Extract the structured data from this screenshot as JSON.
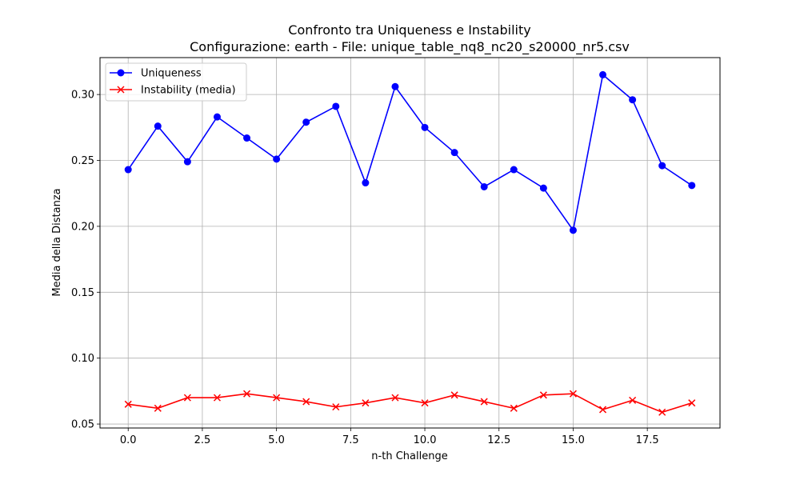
{
  "chart_data": {
    "type": "line",
    "title": "Confronto tra Uniqueness e Instability",
    "subtitle": "Configurazione: earth - File: unique_table_nq8_nc20_s20000_nr5.csv",
    "xlabel": "n-th Challenge",
    "ylabel": "Media della Distanza",
    "xlim": [
      -0.95,
      19.95
    ],
    "ylim": [
      0.047,
      0.328
    ],
    "x_ticks": [
      0,
      2.5,
      5,
      7.5,
      10,
      12.5,
      15,
      17.5
    ],
    "x_tick_labels": [
      "0.0",
      "2.5",
      "5.0",
      "7.5",
      "10.0",
      "12.5",
      "15.0",
      "17.5"
    ],
    "y_ticks": [
      0.05,
      0.1,
      0.15,
      0.2,
      0.25,
      0.3
    ],
    "y_tick_labels": [
      "0.05",
      "0.10",
      "0.15",
      "0.20",
      "0.25",
      "0.30"
    ],
    "grid": true,
    "legend_position": "top-left",
    "x": [
      0,
      1,
      2,
      3,
      4,
      5,
      6,
      7,
      8,
      9,
      10,
      11,
      12,
      13,
      14,
      15,
      16,
      17,
      18,
      19
    ],
    "series": [
      {
        "name": "Uniqueness",
        "color": "#0000ff",
        "marker": "circle",
        "values": [
          0.243,
          0.276,
          0.249,
          0.283,
          0.267,
          0.251,
          0.279,
          0.291,
          0.233,
          0.306,
          0.275,
          0.256,
          0.23,
          0.243,
          0.229,
          0.197,
          0.315,
          0.296,
          0.246,
          0.231
        ]
      },
      {
        "name": "Instability (media)",
        "color": "#ff0000",
        "marker": "x",
        "values": [
          0.065,
          0.062,
          0.07,
          0.07,
          0.073,
          0.07,
          0.067,
          0.063,
          0.066,
          0.07,
          0.066,
          0.072,
          0.067,
          0.062,
          0.072,
          0.073,
          0.061,
          0.068,
          0.059,
          0.066
        ]
      }
    ]
  }
}
